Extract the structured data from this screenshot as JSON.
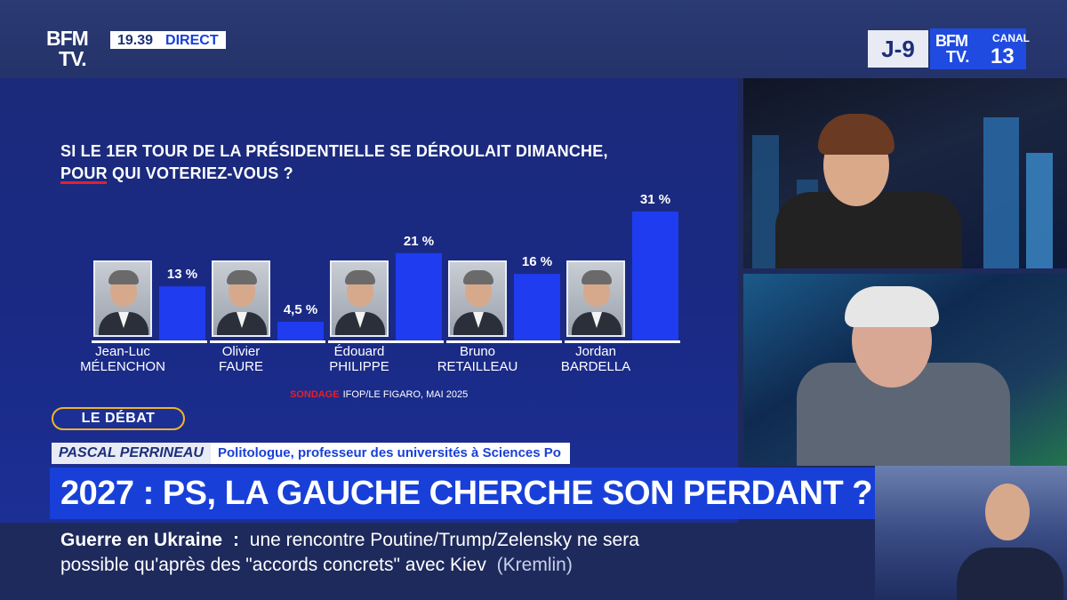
{
  "channel": {
    "logo_line1": "BFM",
    "logo_line2": "TV.",
    "time": "19.39",
    "live_label": "DIRECT",
    "countdown": "J-9",
    "canal_label": "CANAL",
    "canal_number": "13"
  },
  "chart_data": {
    "type": "bar",
    "title_line1": "SI LE 1ER TOUR DE LA PRÉSIDENTIELLE SE DÉROULAIT DIMANCHE,",
    "title_line2": "POUR QUI VOTERIEZ-VOUS ?",
    "categories": [
      {
        "first": "Jean-Luc",
        "last": "MÉLENCHON"
      },
      {
        "first": "Olivier",
        "last": "FAURE"
      },
      {
        "first": "Édouard",
        "last": "PHILIPPE"
      },
      {
        "first": "Bruno",
        "last": "RETAILLEAU"
      },
      {
        "first": "Jordan",
        "last": "BARDELLA"
      }
    ],
    "values": [
      13,
      4.5,
      21,
      16,
      31
    ],
    "value_labels": [
      "13 %",
      "4,5 %",
      "21 %",
      "16 %",
      "31 %"
    ],
    "unit": "%",
    "ylim": [
      0,
      31
    ],
    "bar_color": "#1f3cf0",
    "source_tag": "SONDAGE",
    "source": "IFOP/LE FIGARO, MAI 2025"
  },
  "lower_third": {
    "segment": "LE DÉBAT",
    "guest_name": "PASCAL PERRINEAU",
    "guest_title": "Politologue, professeur des universités à Sciences Po",
    "headline": "2027 : PS, LA GAUCHE CHERCHE SON PERDANT ?"
  },
  "ticker": {
    "topic": "Guerre en Ukraine",
    "separator": ":",
    "text_line1": "une rencontre Poutine/Trump/Zelensky ne sera",
    "text_line2": "possible qu'après des \"accords concrets\" avec Kiev",
    "source": "(Kremlin)"
  }
}
